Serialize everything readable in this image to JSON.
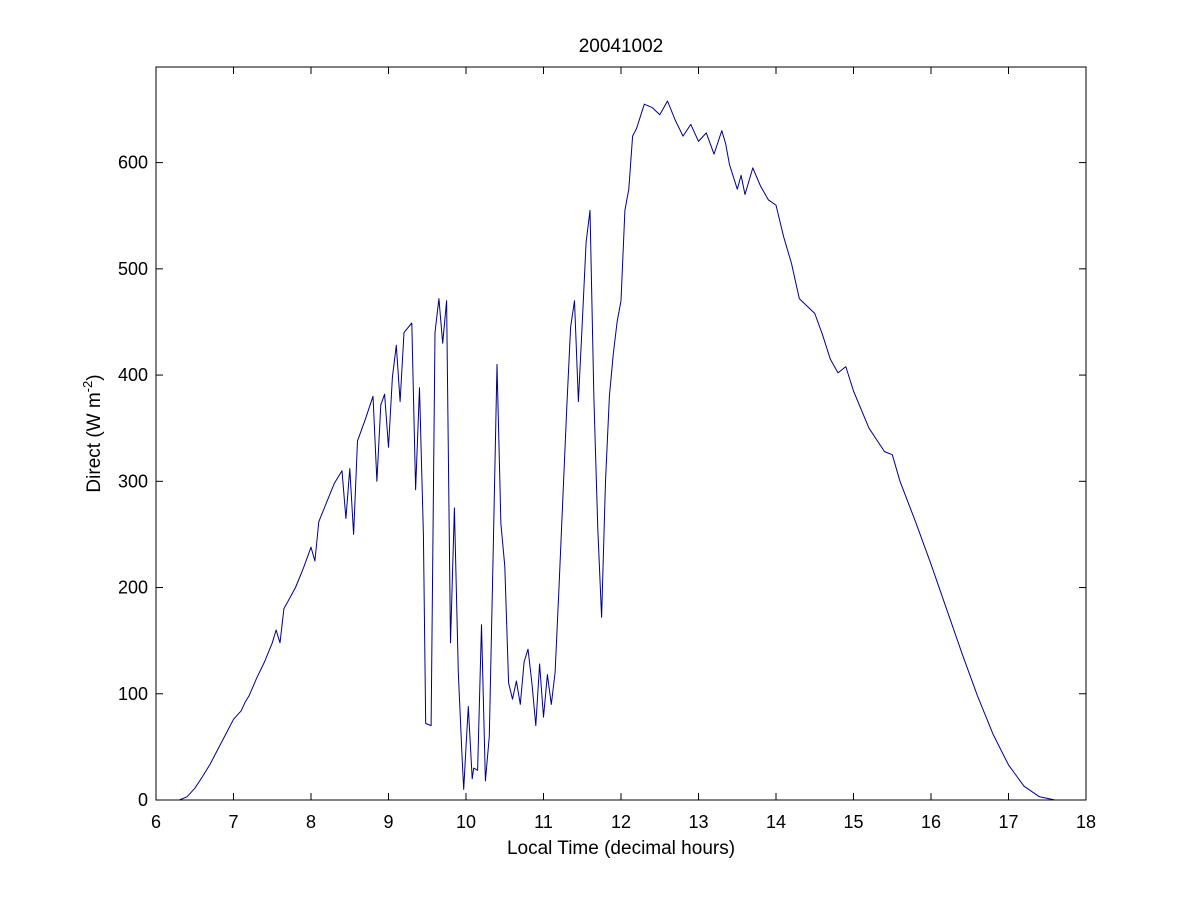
{
  "chart_data": {
    "type": "line",
    "title": "20041002",
    "xlabel": "Local Time (decimal hours)",
    "ylabel": {
      "prefix": "Direct (W m",
      "superscript": "-2",
      "suffix": ")"
    },
    "xlim": [
      6,
      18
    ],
    "ylim": [
      0,
      690
    ],
    "xticks": [
      6,
      7,
      8,
      9,
      10,
      11,
      12,
      13,
      14,
      15,
      16,
      17,
      18
    ],
    "yticks": [
      0,
      100,
      200,
      300,
      400,
      500,
      600
    ],
    "grid": false,
    "legend": "none",
    "series": [
      {
        "color": "#000080",
        "points": [
          [
            6.2,
            0
          ],
          [
            6.3,
            0
          ],
          [
            6.4,
            3
          ],
          [
            6.5,
            11
          ],
          [
            6.6,
            22
          ],
          [
            6.7,
            34
          ],
          [
            6.8,
            48
          ],
          [
            6.9,
            62
          ],
          [
            7.0,
            76
          ],
          [
            7.1,
            84
          ],
          [
            7.15,
            92
          ],
          [
            7.2,
            98
          ],
          [
            7.3,
            115
          ],
          [
            7.4,
            130
          ],
          [
            7.5,
            148
          ],
          [
            7.55,
            160
          ],
          [
            7.6,
            148
          ],
          [
            7.65,
            180
          ],
          [
            7.8,
            200
          ],
          [
            7.9,
            218
          ],
          [
            8.0,
            238
          ],
          [
            8.05,
            225
          ],
          [
            8.1,
            262
          ],
          [
            8.2,
            280
          ],
          [
            8.3,
            298
          ],
          [
            8.4,
            310
          ],
          [
            8.45,
            265
          ],
          [
            8.5,
            312
          ],
          [
            8.55,
            250
          ],
          [
            8.6,
            338
          ],
          [
            8.7,
            358
          ],
          [
            8.8,
            380
          ],
          [
            8.85,
            300
          ],
          [
            8.9,
            372
          ],
          [
            8.95,
            382
          ],
          [
            9.0,
            332
          ],
          [
            9.05,
            398
          ],
          [
            9.1,
            428
          ],
          [
            9.15,
            375
          ],
          [
            9.2,
            440
          ],
          [
            9.3,
            449
          ],
          [
            9.35,
            292
          ],
          [
            9.4,
            388
          ],
          [
            9.45,
            250
          ],
          [
            9.48,
            72
          ],
          [
            9.55,
            70
          ],
          [
            9.6,
            440
          ],
          [
            9.65,
            472
          ],
          [
            9.7,
            430
          ],
          [
            9.75,
            470
          ],
          [
            9.8,
            148
          ],
          [
            9.85,
            275
          ],
          [
            9.9,
            120
          ],
          [
            9.95,
            40
          ],
          [
            9.97,
            10
          ],
          [
            10.0,
            50
          ],
          [
            10.03,
            88
          ],
          [
            10.05,
            60
          ],
          [
            10.08,
            20
          ],
          [
            10.1,
            30
          ],
          [
            10.15,
            28
          ],
          [
            10.2,
            165
          ],
          [
            10.25,
            18
          ],
          [
            10.3,
            60
          ],
          [
            10.35,
            230
          ],
          [
            10.4,
            410
          ],
          [
            10.45,
            260
          ],
          [
            10.5,
            220
          ],
          [
            10.55,
            110
          ],
          [
            10.6,
            95
          ],
          [
            10.65,
            112
          ],
          [
            10.7,
            90
          ],
          [
            10.75,
            130
          ],
          [
            10.8,
            142
          ],
          [
            10.85,
            110
          ],
          [
            10.9,
            70
          ],
          [
            10.95,
            128
          ],
          [
            11.0,
            78
          ],
          [
            11.05,
            118
          ],
          [
            11.1,
            90
          ],
          [
            11.15,
            120
          ],
          [
            11.2,
            200
          ],
          [
            11.3,
            370
          ],
          [
            11.35,
            445
          ],
          [
            11.4,
            470
          ],
          [
            11.45,
            375
          ],
          [
            11.5,
            450
          ],
          [
            11.55,
            525
          ],
          [
            11.6,
            555
          ],
          [
            11.65,
            378
          ],
          [
            11.7,
            255
          ],
          [
            11.75,
            172
          ],
          [
            11.8,
            300
          ],
          [
            11.85,
            380
          ],
          [
            11.9,
            420
          ],
          [
            11.95,
            450
          ],
          [
            12.0,
            470
          ],
          [
            12.05,
            555
          ],
          [
            12.1,
            575
          ],
          [
            12.15,
            625
          ],
          [
            12.2,
            632
          ],
          [
            12.3,
            655
          ],
          [
            12.4,
            652
          ],
          [
            12.5,
            645
          ],
          [
            12.6,
            658
          ],
          [
            12.7,
            640
          ],
          [
            12.8,
            625
          ],
          [
            12.9,
            636
          ],
          [
            13.0,
            620
          ],
          [
            13.1,
            628
          ],
          [
            13.2,
            608
          ],
          [
            13.3,
            630
          ],
          [
            13.35,
            618
          ],
          [
            13.4,
            598
          ],
          [
            13.5,
            575
          ],
          [
            13.55,
            588
          ],
          [
            13.6,
            570
          ],
          [
            13.7,
            595
          ],
          [
            13.8,
            578
          ],
          [
            13.9,
            565
          ],
          [
            14.0,
            560
          ],
          [
            14.1,
            530
          ],
          [
            14.2,
            505
          ],
          [
            14.3,
            472
          ],
          [
            14.4,
            465
          ],
          [
            14.5,
            458
          ],
          [
            14.6,
            438
          ],
          [
            14.7,
            415
          ],
          [
            14.8,
            402
          ],
          [
            14.9,
            408
          ],
          [
            15.0,
            385
          ],
          [
            15.2,
            350
          ],
          [
            15.4,
            328
          ],
          [
            15.5,
            325
          ],
          [
            15.6,
            300
          ],
          [
            15.8,
            262
          ],
          [
            16.0,
            222
          ],
          [
            16.2,
            180
          ],
          [
            16.4,
            138
          ],
          [
            16.6,
            98
          ],
          [
            16.8,
            62
          ],
          [
            17.0,
            33
          ],
          [
            17.2,
            13
          ],
          [
            17.4,
            3
          ],
          [
            17.6,
            0
          ],
          [
            17.8,
            0
          ]
        ]
      }
    ]
  }
}
